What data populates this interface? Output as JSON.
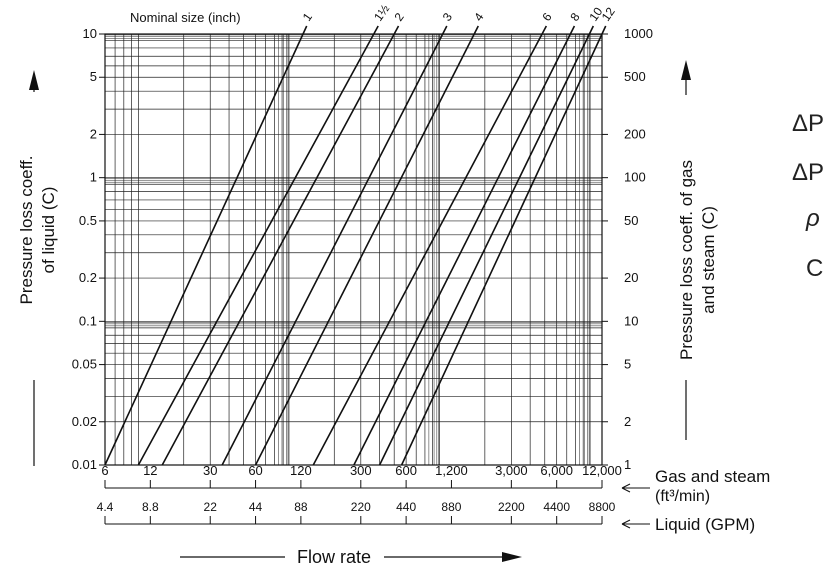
{
  "chart_data": {
    "type": "line",
    "title": "",
    "size_header": "Nominal size (inch)",
    "xlabel": "Flow rate",
    "x_gas_label_line1": "Gas and steam",
    "x_gas_label_line2": "(ft³/min)",
    "x_liquid_label": "Liquid (GPM)",
    "ylabel_left_line1": "Pressure loss coeff.",
    "ylabel_left_line2": "of liquid (C)",
    "ylabel_right_line1": "Pressure loss coeff. of gas",
    "ylabel_right_line2": "and steam (C)",
    "x_scale": "log",
    "y_scale": "log",
    "xlim_gas": [
      6,
      12000
    ],
    "ylim_left": [
      0.01,
      10
    ],
    "ylim_right": [
      1,
      1000
    ],
    "grid": true,
    "x_ticks_gas": [
      "6",
      "12",
      "30",
      "60",
      "120",
      "300",
      "600",
      "1,200",
      "3,000",
      "6,000",
      "12,000"
    ],
    "x_ticks_liquid": [
      "4.4",
      "8.8",
      "22",
      "44",
      "88",
      "220",
      "440",
      "880",
      "2200",
      "4400",
      "8800"
    ],
    "y_ticks_left": [
      "10",
      "5",
      "2",
      "1",
      "0.5",
      "0.2",
      "0.1",
      "0.05",
      "0.02",
      "0.01"
    ],
    "y_ticks_right": [
      "1000",
      "500",
      "200",
      "100",
      "50",
      "20",
      "10",
      "5",
      "2",
      "1"
    ],
    "series": [
      {
        "name": "1",
        "label": "1",
        "x_at_ymin": 6,
        "x_at_ymax": 124
      },
      {
        "name": "1 1/2",
        "label": "1½",
        "x_at_ymin": 10,
        "x_at_ymax": 366
      },
      {
        "name": "2",
        "label": "2",
        "x_at_ymin": 14.4,
        "x_at_ymax": 500
      },
      {
        "name": "3",
        "label": "3",
        "x_at_ymin": 36,
        "x_at_ymax": 1050
      },
      {
        "name": "4",
        "label": "4",
        "x_at_ymin": 60,
        "x_at_ymax": 1700
      },
      {
        "name": "6",
        "label": "6",
        "x_at_ymin": 145,
        "x_at_ymax": 4800
      },
      {
        "name": "8",
        "label": "8",
        "x_at_ymin": 270,
        "x_at_ymax": 7400
      },
      {
        "name": "10",
        "label": "10",
        "x_at_ymin": 400,
        "x_at_ymax": 9900
      },
      {
        "name": "12",
        "label": "12",
        "x_at_ymin": 560,
        "x_at_ymax": 12000
      }
    ]
  },
  "side_text": {
    "line1": "ΔP",
    "line2": "ΔP",
    "line3": "ρ",
    "line4": "C"
  }
}
